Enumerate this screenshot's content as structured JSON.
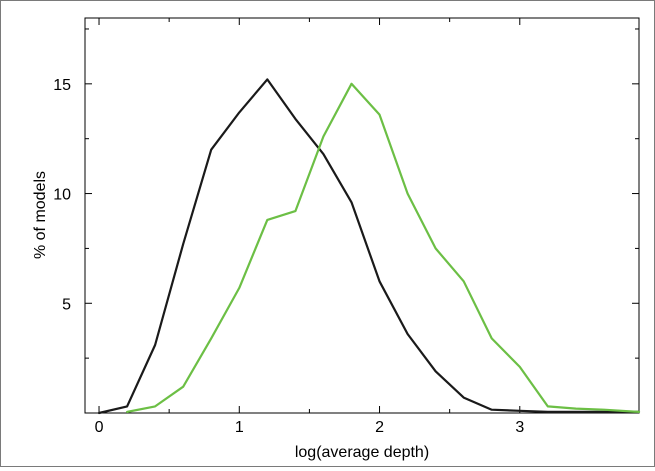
{
  "chart_data": {
    "type": "line",
    "title": "",
    "xlabel": "log(average depth)",
    "ylabel": "% of models",
    "xlim": [
      -0.1,
      3.85
    ],
    "ylim": [
      0,
      18
    ],
    "x_ticks": [
      0,
      1,
      2,
      3
    ],
    "x_tick_labels": [
      "0",
      "1",
      "2",
      "3"
    ],
    "y_ticks": [
      5,
      10,
      15
    ],
    "y_tick_labels": [
      "5",
      "10",
      "15"
    ],
    "grid": false,
    "legend": "none",
    "series": [
      {
        "color": "#1a1a1a",
        "x": [
          0.0,
          0.2,
          0.4,
          0.6,
          0.8,
          1.0,
          1.2,
          1.4,
          1.6,
          1.8,
          2.0,
          2.2,
          2.4,
          2.6,
          2.8,
          3.0,
          3.2,
          3.4,
          3.6,
          3.85
        ],
        "y": [
          0.0,
          0.3,
          3.1,
          7.7,
          12.0,
          13.7,
          15.2,
          13.4,
          11.8,
          9.6,
          6.0,
          3.6,
          1.9,
          0.7,
          0.15,
          0.1,
          0.05,
          0.05,
          0.05,
          0.05
        ]
      },
      {
        "color": "#6cbf45",
        "x": [
          0.2,
          0.4,
          0.6,
          0.8,
          1.0,
          1.2,
          1.4,
          1.6,
          1.8,
          2.0,
          2.2,
          2.4,
          2.6,
          2.8,
          3.0,
          3.2,
          3.4,
          3.6,
          3.85
        ],
        "y": [
          0.05,
          0.3,
          1.2,
          3.4,
          5.7,
          8.8,
          9.2,
          12.6,
          15.0,
          13.6,
          10.0,
          7.5,
          6.0,
          3.4,
          2.1,
          0.3,
          0.2,
          0.15,
          0.05
        ]
      }
    ]
  }
}
